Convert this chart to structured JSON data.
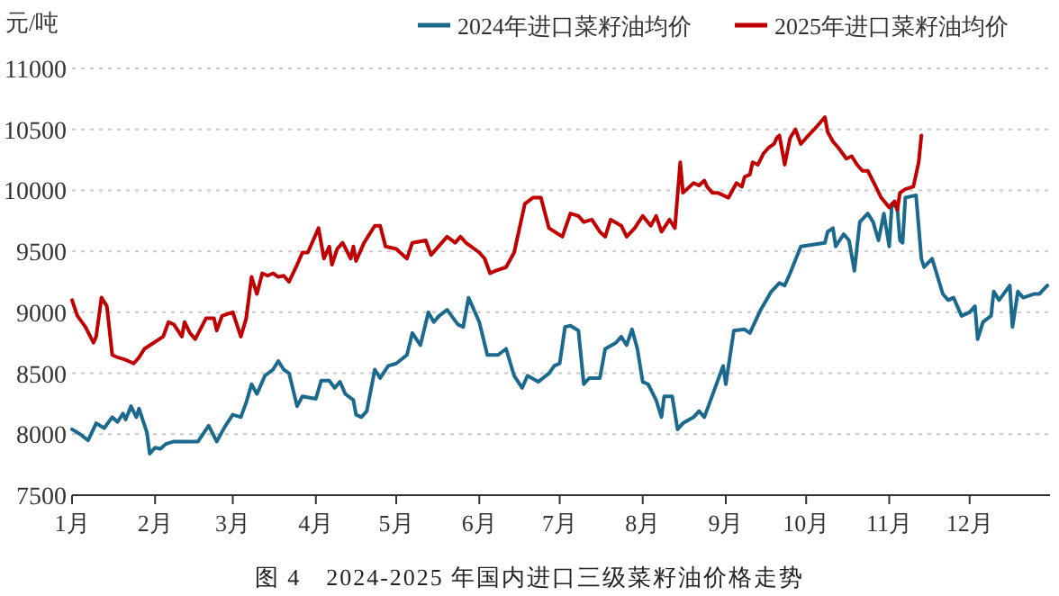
{
  "chart_data": {
    "type": "line",
    "title": "图 4　2024-2025 年国内进口三级菜籽油价格走势",
    "ylabel": "元/吨",
    "legend": "top right",
    "grid": "y",
    "xlim": [
      "--01-01",
      "--12-31"
    ],
    "xticks": [
      {
        "value": "--01-01",
        "label": "1月"
      },
      {
        "value": "--02-01",
        "label": "2月"
      },
      {
        "value": "--03-01",
        "label": "3月"
      },
      {
        "value": "--04-01",
        "label": "4月"
      },
      {
        "value": "--05-01",
        "label": "5月"
      },
      {
        "value": "--06-01",
        "label": "6月"
      },
      {
        "value": "--07-01",
        "label": "7月"
      },
      {
        "value": "--08-01",
        "label": "8月"
      },
      {
        "value": "--09-01",
        "label": "9月"
      },
      {
        "value": "--10-01",
        "label": "10月"
      },
      {
        "value": "--11-01",
        "label": "11月"
      },
      {
        "value": "--12-01",
        "label": "12月"
      }
    ],
    "ylim": [
      7500,
      11000
    ],
    "yticks": [
      7500,
      8000,
      8500,
      9000,
      9500,
      10000,
      10500,
      11000
    ],
    "series": [
      {
        "name": "2024年进口菜籽油均价",
        "color": "#1b6a8e",
        "x": [
          "--01-01",
          "--01-04",
          "--01-07",
          "--01-10",
          "--01-13",
          "--01-16",
          "--01-18",
          "--01-20",
          "--01-21",
          "--01-23",
          "--01-25",
          "--01-26",
          "--01-29",
          "--01-30",
          "--02-01",
          "--02-03",
          "--02-05",
          "--02-08",
          "--02-11",
          "--02-17",
          "--02-21",
          "--02-24",
          "--02-27",
          "--03-01",
          "--03-04",
          "--03-06",
          "--03-08",
          "--03-10",
          "--03-13",
          "--03-16",
          "--03-18",
          "--03-20",
          "--03-22",
          "--03-25",
          "--03-27",
          "--04-01",
          "--04-03",
          "--04-06",
          "--04-08",
          "--04-10",
          "--04-12",
          "--04-15",
          "--04-16",
          "--04-18",
          "--04-20",
          "--04-23",
          "--04-25",
          "--04-28",
          "--05-01",
          "--05-05",
          "--05-07",
          "--05-10",
          "--05-13",
          "--05-15",
          "--05-17",
          "--05-20",
          "--05-24",
          "--05-26",
          "--05-28",
          "--06-01",
          "--06-04",
          "--06-08",
          "--06-11",
          "--06-14",
          "--06-17",
          "--06-19",
          "--06-23",
          "--06-27",
          "--06-29",
          "--07-01",
          "--07-03",
          "--07-05",
          "--07-08",
          "--07-10",
          "--07-12",
          "--07-16",
          "--07-18",
          "--07-22",
          "--07-24",
          "--07-26",
          "--07-28",
          "--07-30",
          "--08-01",
          "--08-03",
          "--08-06",
          "--08-08",
          "--08-09",
          "--08-12",
          "--08-14",
          "--08-16",
          "--08-20",
          "--08-22",
          "--08-24",
          "--08-28",
          "--08-31",
          "--09-01",
          "--09-04",
          "--09-08",
          "--09-10",
          "--09-14",
          "--09-18",
          "--09-21",
          "--09-23",
          "--09-25",
          "--09-29",
          "--10-08",
          "--10-09",
          "--10-11",
          "--10-12",
          "--10-15",
          "--10-17",
          "--10-19",
          "--10-21",
          "--10-24",
          "--10-26",
          "--10-28",
          "--10-30",
          "--11-01",
          "--11-02",
          "--11-04",
          "--11-05",
          "--11-06",
          "--11-07",
          "--11-11",
          "--11-13",
          "--11-14",
          "--11-17",
          "--11-21",
          "--11-23",
          "--11-25",
          "--11-28",
          "--12-01",
          "--12-03",
          "--12-04",
          "--12-06",
          "--12-09",
          "--12-10",
          "--12-12",
          "--12-16",
          "--12-17",
          "--12-19",
          "--12-21",
          "--12-25",
          "--12-27",
          "--12-30"
        ],
        "values": [
          8040,
          8000,
          7950,
          8090,
          8050,
          8140,
          8100,
          8170,
          8120,
          8230,
          8140,
          8210,
          8010,
          7840,
          7890,
          7880,
          7920,
          7940,
          7940,
          7940,
          8070,
          7940,
          8060,
          8160,
          8140,
          8260,
          8410,
          8330,
          8480,
          8530,
          8600,
          8530,
          8500,
          8230,
          8310,
          8290,
          8440,
          8440,
          8380,
          8430,
          8330,
          8280,
          8160,
          8140,
          8190,
          8530,
          8460,
          8560,
          8580,
          8650,
          8830,
          8730,
          9000,
          8920,
          8970,
          9020,
          8900,
          8880,
          9120,
          8920,
          8650,
          8650,
          8700,
          8480,
          8380,
          8480,
          8430,
          8500,
          8560,
          8580,
          8880,
          8890,
          8850,
          8410,
          8460,
          8460,
          8700,
          8750,
          8800,
          8730,
          8860,
          8700,
          8430,
          8410,
          8280,
          8140,
          8310,
          8310,
          8040,
          8090,
          8140,
          8190,
          8140,
          8380,
          8560,
          8410,
          8850,
          8860,
          8830,
          9020,
          9170,
          9240,
          9220,
          9320,
          9540,
          9570,
          9660,
          9690,
          9540,
          9640,
          9590,
          9340,
          9740,
          9810,
          9740,
          9590,
          9810,
          9540,
          9890,
          9860,
          9590,
          9570,
          9940,
          9960,
          9440,
          9370,
          9440,
          9150,
          9100,
          9120,
          8970,
          9000,
          9050,
          8780,
          8920,
          8970,
          9170,
          9100,
          9220,
          8880,
          9170,
          9120,
          9150,
          9150,
          9220
        ]
      },
      {
        "name": "2025年进口菜籽油均价",
        "color": "#c00000",
        "x": [
          "--01-01",
          "--01-03",
          "--01-06",
          "--01-09",
          "--01-10",
          "--01-12",
          "--01-14",
          "--01-16",
          "--01-18",
          "--01-21",
          "--01-24",
          "--01-26",
          "--01-28",
          "--02-04",
          "--02-06",
          "--02-08",
          "--02-11",
          "--02-12",
          "--02-14",
          "--02-16",
          "--02-20",
          "--02-23",
          "--02-24",
          "--02-26",
          "--03-01",
          "--03-04",
          "--03-06",
          "--03-08",
          "--03-10",
          "--03-12",
          "--03-14",
          "--03-16",
          "--03-18",
          "--03-20",
          "--03-22",
          "--03-25",
          "--03-27",
          "--03-29",
          "--04-02",
          "--04-04",
          "--04-06",
          "--04-07",
          "--04-09",
          "--04-11",
          "--04-14",
          "--04-15",
          "--04-16",
          "--04-19",
          "--04-23",
          "--04-25",
          "--04-27",
          "--05-01",
          "--05-05",
          "--05-07",
          "--05-12",
          "--05-14",
          "--05-16",
          "--05-20",
          "--05-23",
          "--05-25",
          "--05-27",
          "--06-01",
          "--06-03",
          "--06-05",
          "--06-07",
          "--06-11",
          "--06-14",
          "--06-18",
          "--06-21",
          "--06-24",
          "--06-27",
          "--07-02",
          "--07-05",
          "--07-08",
          "--07-10",
          "--07-13",
          "--07-16",
          "--07-18",
          "--07-20",
          "--07-24",
          "--07-26",
          "--07-29",
          "--08-01",
          "--08-04",
          "--08-06",
          "--08-08",
          "--08-11",
          "--08-13",
          "--08-15",
          "--08-16",
          "--08-20",
          "--08-22",
          "--08-24",
          "--08-25",
          "--08-27",
          "--08-29",
          "--08-31",
          "--09-02",
          "--09-05",
          "--09-07",
          "--09-08",
          "--09-10",
          "--09-11",
          "--09-13",
          "--09-15",
          "--09-17",
          "--09-19",
          "--09-20",
          "--09-21",
          "--09-23",
          "--09-25",
          "--09-27",
          "--09-29",
          "--10-01",
          "--10-04",
          "--10-08",
          "--10-09",
          "--10-11",
          "--10-13",
          "--10-16",
          "--10-18",
          "--10-20",
          "--10-22",
          "--10-24",
          "--10-27",
          "--10-29",
          "--11-01",
          "--11-03",
          "--11-04",
          "--11-05",
          "--11-07",
          "--11-10",
          "--11-12",
          "--11-13"
        ],
        "values": [
          9100,
          8970,
          8880,
          8750,
          8800,
          9120,
          9050,
          8650,
          8630,
          8610,
          8580,
          8630,
          8700,
          8800,
          8920,
          8900,
          8800,
          8920,
          8830,
          8780,
          8950,
          8950,
          8850,
          8970,
          9000,
          8800,
          8950,
          9290,
          9150,
          9320,
          9300,
          9320,
          9290,
          9300,
          9250,
          9390,
          9490,
          9490,
          9690,
          9440,
          9540,
          9390,
          9520,
          9570,
          9440,
          9540,
          9420,
          9570,
          9710,
          9710,
          9540,
          9520,
          9440,
          9570,
          9590,
          9470,
          9520,
          9620,
          9570,
          9620,
          9570,
          9490,
          9440,
          9320,
          9340,
          9370,
          9490,
          9890,
          9940,
          9940,
          9690,
          9620,
          9810,
          9790,
          9740,
          9760,
          9660,
          9620,
          9760,
          9710,
          9620,
          9690,
          9790,
          9710,
          9790,
          9660,
          9760,
          9690,
          10230,
          9980,
          10060,
          10040,
          10080,
          10030,
          9980,
          9980,
          9960,
          9940,
          10060,
          10030,
          10110,
          10130,
          10230,
          10210,
          10300,
          10350,
          10380,
          10430,
          10450,
          10210,
          10430,
          10500,
          10380,
          10430,
          10500,
          10600,
          10480,
          10400,
          10350,
          10260,
          10280,
          10210,
          10160,
          10160,
          10030,
          9940,
          9860,
          9910,
          9840,
          9980,
          10010,
          10030,
          10230,
          10450
        ]
      }
    ]
  }
}
